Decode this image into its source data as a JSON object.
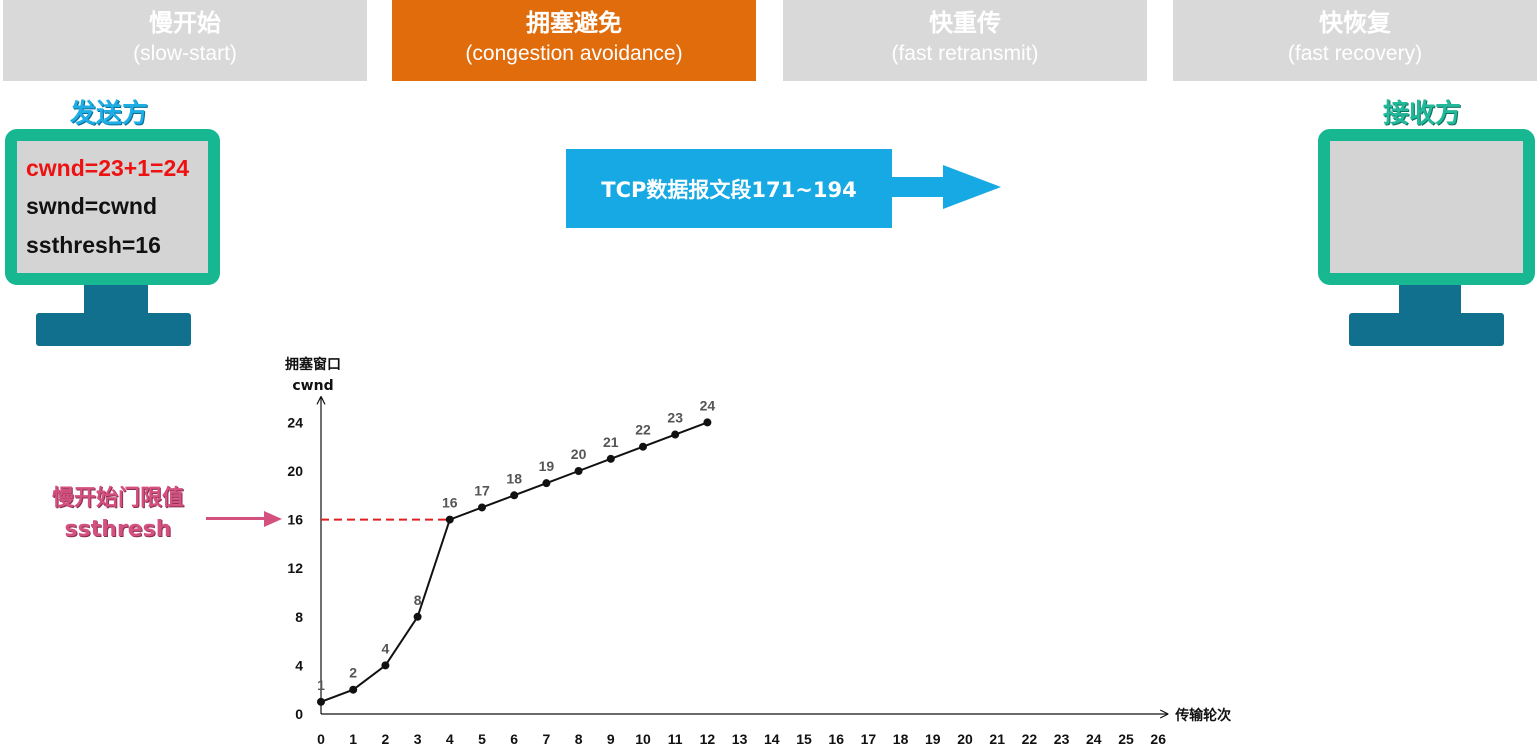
{
  "tabs": [
    {
      "cn": "慢开始",
      "en": "(slow-start)",
      "active": false
    },
    {
      "cn": "拥塞避免",
      "en": "(congestion avoidance)",
      "active": true
    },
    {
      "cn": "快重传",
      "en": "(fast retransmit)",
      "active": false
    },
    {
      "cn": "快恢复",
      "en": "(fast recovery)",
      "active": false
    }
  ],
  "sender": {
    "title": "发送方",
    "lines": [
      "cwnd=23+1=24",
      "swnd=cwnd",
      "ssthresh=16"
    ]
  },
  "receiver": {
    "title": "接收方"
  },
  "packet": {
    "label": "TCP数据报文段171~194"
  },
  "ssthresh_marker": {
    "line1": "慢开始门限值",
    "line2": "ssthresh"
  },
  "colors": {
    "active_tab": "#e06c0c",
    "inactive_tab": "#d9d9d9",
    "monitor_frame": "#17b891",
    "monitor_stand": "#12708f",
    "packet": "#17a9e4",
    "highlight": "#ee1111",
    "ssthresh": "#d4507f"
  },
  "chart_data": {
    "type": "line",
    "ylabel_line1": "拥塞窗口",
    "ylabel_line2": "cwnd",
    "xlabel": "传输轮次",
    "xticks": [
      0,
      1,
      2,
      3,
      4,
      5,
      6,
      7,
      8,
      9,
      10,
      11,
      12,
      13,
      14,
      15,
      16,
      17,
      18,
      19,
      20,
      21,
      22,
      23,
      24,
      25,
      26
    ],
    "yticks": [
      0,
      4,
      8,
      12,
      16,
      20,
      24
    ],
    "x": [
      0,
      1,
      2,
      3,
      4,
      5,
      6,
      7,
      8,
      9,
      10,
      11,
      12
    ],
    "y": [
      1,
      2,
      4,
      8,
      16,
      17,
      18,
      19,
      20,
      21,
      22,
      23,
      24
    ],
    "point_labels": [
      "1",
      "2",
      "4",
      "8",
      "16",
      "17",
      "18",
      "19",
      "20",
      "21",
      "22",
      "23",
      "24"
    ],
    "ssthresh": 16,
    "xlim": [
      0,
      26
    ],
    "ylim": [
      0,
      24
    ]
  }
}
